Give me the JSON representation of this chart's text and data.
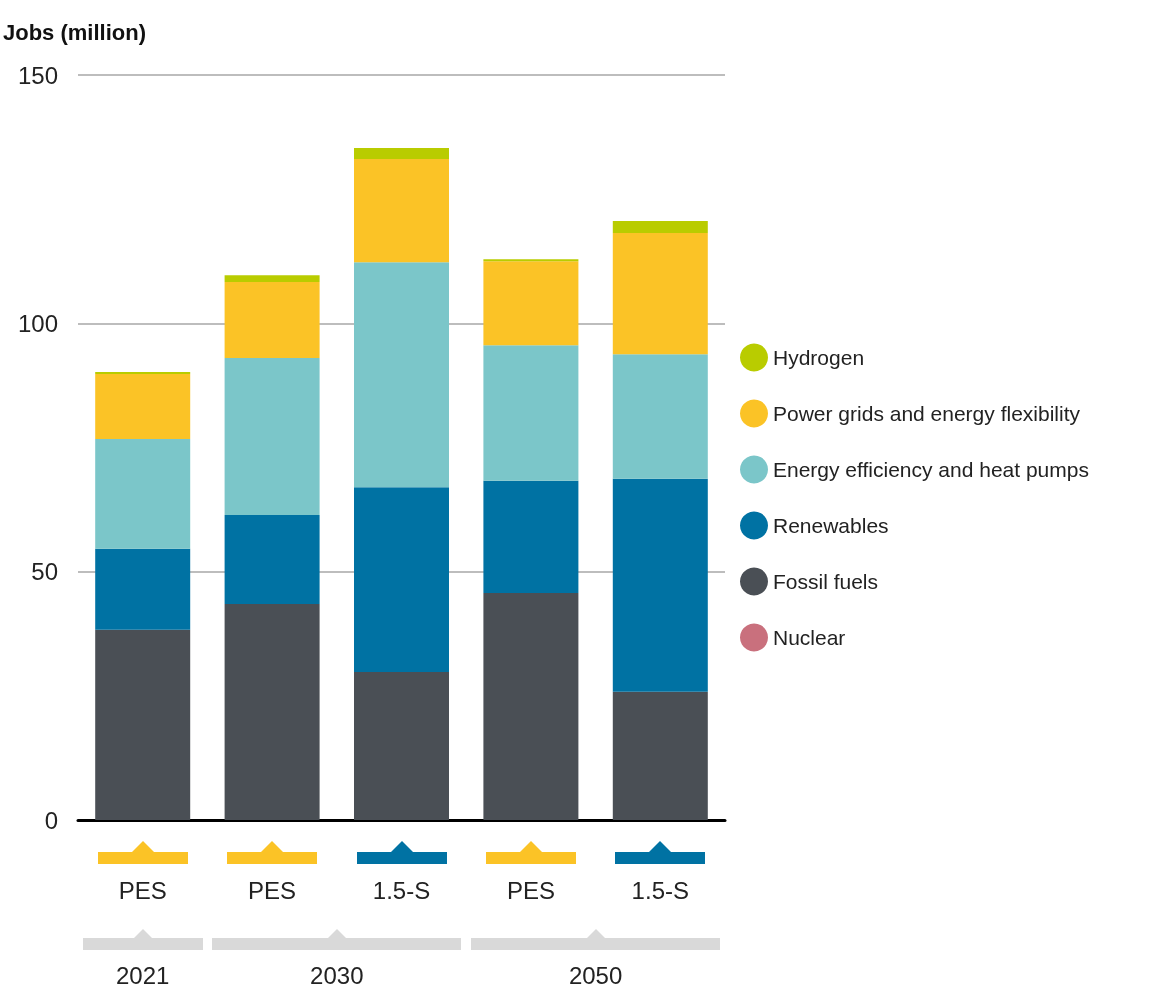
{
  "chart_data": {
    "type": "bar",
    "stacked": true,
    "ylabel": "Jobs (million)",
    "categories": [
      "PES",
      "PES",
      "1.5-S",
      "PES",
      "1.5-S"
    ],
    "series": [
      {
        "name": "Nuclear",
        "color": "#c9707d",
        "values": [
          null,
          null,
          null,
          null,
          null
        ]
      },
      {
        "name": "Fossil fuels",
        "color": "#4a4f55",
        "values": [
          38.3,
          43.5,
          29.8,
          45.7,
          25.8
        ]
      },
      {
        "name": "Renewables",
        "color": "#0072a3",
        "values": [
          16.3,
          17.9,
          37.2,
          22.6,
          42.9
        ]
      },
      {
        "name": "Energy efficiency and heat pumps",
        "color": "#7bc6c9",
        "values": [
          22.1,
          31.6,
          45.3,
          27.3,
          25.1
        ]
      },
      {
        "name": "Power grids and energy flexibility",
        "color": "#fbc326",
        "values": [
          13.1,
          15.3,
          20.8,
          16.9,
          24.4
        ]
      },
      {
        "name": "Hydrogen",
        "color": "#b9cc00",
        "values": [
          0.4,
          1.4,
          2.2,
          0.4,
          2.4
        ]
      }
    ],
    "ylim": [
      0,
      150
    ],
    "yticks": [
      0,
      50,
      100,
      150
    ],
    "grid": "y",
    "legend": "right",
    "annotations": [
      "2021",
      "2030",
      "2050"
    ]
  }
}
